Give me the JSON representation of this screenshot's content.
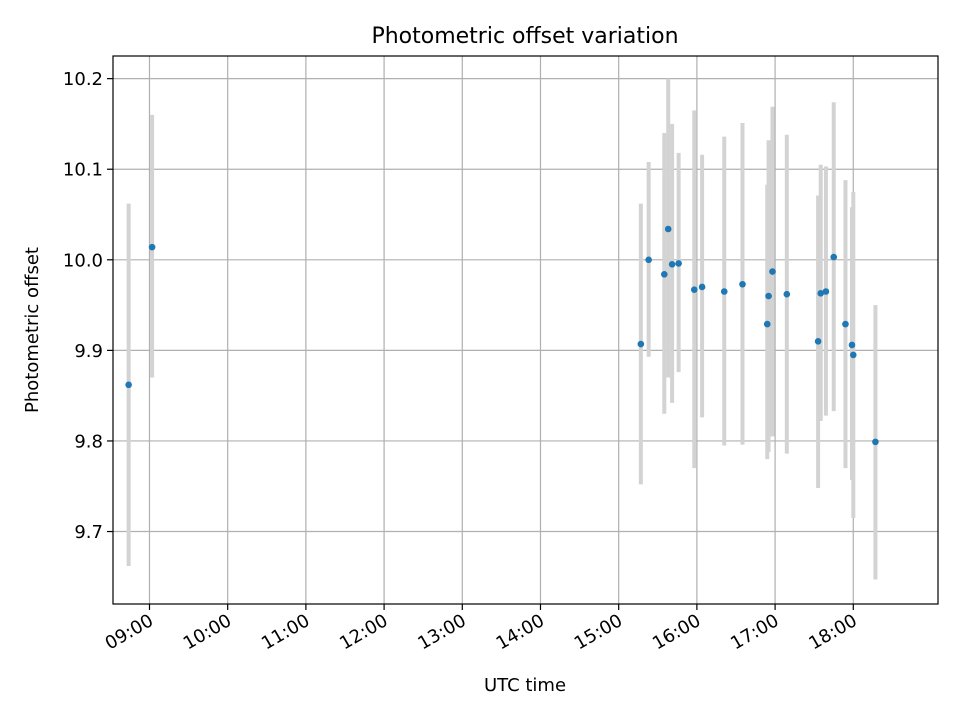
{
  "chart_data": {
    "type": "scatter",
    "title": "Photometric offset variation",
    "xlabel": "UTC time",
    "ylabel": "Photometric offset",
    "grid": true,
    "x_axis": {
      "type": "time",
      "range": [
        "08:32",
        "19:05"
      ],
      "ticks": [
        "09:00",
        "10:00",
        "11:00",
        "12:00",
        "13:00",
        "14:00",
        "15:00",
        "16:00",
        "17:00",
        "18:00"
      ]
    },
    "y_axis": {
      "range": [
        9.62,
        10.225
      ],
      "ticks": [
        9.7,
        9.8,
        9.9,
        10.0,
        10.1,
        10.2
      ],
      "tick_labels": [
        "9.7",
        "9.8",
        "9.9",
        "10.0",
        "10.1",
        "10.2"
      ]
    },
    "marker_color": "#1f77b4",
    "errorbar_color": "#d3d3d3",
    "points": [
      {
        "t": "08:44",
        "y": 9.862,
        "lo": 9.662,
        "hi": 10.062
      },
      {
        "t": "09:02",
        "y": 10.014,
        "lo": 9.87,
        "hi": 10.16
      },
      {
        "t": "15:17",
        "y": 9.907,
        "lo": 9.752,
        "hi": 10.062
      },
      {
        "t": "15:23",
        "y": 10.0,
        "lo": 9.893,
        "hi": 10.108
      },
      {
        "t": "15:35",
        "y": 9.984,
        "lo": 9.83,
        "hi": 10.14
      },
      {
        "t": "15:38",
        "y": 10.034,
        "lo": 9.87,
        "hi": 10.2
      },
      {
        "t": "15:41",
        "y": 9.995,
        "lo": 9.842,
        "hi": 10.15
      },
      {
        "t": "15:46",
        "y": 9.996,
        "lo": 9.876,
        "hi": 10.118
      },
      {
        "t": "15:58",
        "y": 9.967,
        "lo": 9.77,
        "hi": 10.165
      },
      {
        "t": "16:04",
        "y": 9.97,
        "lo": 9.826,
        "hi": 10.116
      },
      {
        "t": "16:21",
        "y": 9.965,
        "lo": 9.795,
        "hi": 10.136
      },
      {
        "t": "16:35",
        "y": 9.973,
        "lo": 9.796,
        "hi": 10.151
      },
      {
        "t": "16:54",
        "y": 9.929,
        "lo": 9.78,
        "hi": 10.083
      },
      {
        "t": "16:55",
        "y": 9.96,
        "lo": 9.788,
        "hi": 10.132
      },
      {
        "t": "16:58",
        "y": 9.987,
        "lo": 9.805,
        "hi": 10.169
      },
      {
        "t": "17:09",
        "y": 9.962,
        "lo": 9.786,
        "hi": 10.138
      },
      {
        "t": "17:33",
        "y": 9.91,
        "lo": 9.748,
        "hi": 10.071
      },
      {
        "t": "17:35",
        "y": 9.963,
        "lo": 9.822,
        "hi": 10.105
      },
      {
        "t": "17:39",
        "y": 9.965,
        "lo": 9.828,
        "hi": 10.103
      },
      {
        "t": "17:45",
        "y": 10.003,
        "lo": 9.833,
        "hi": 10.174
      },
      {
        "t": "17:54",
        "y": 9.929,
        "lo": 9.77,
        "hi": 10.088
      },
      {
        "t": "17:59",
        "y": 9.906,
        "lo": 9.757,
        "hi": 10.058
      },
      {
        "t": "18:00",
        "y": 9.895,
        "lo": 9.715,
        "hi": 10.075
      },
      {
        "t": "18:17",
        "y": 9.799,
        "lo": 9.647,
        "hi": 9.95
      }
    ]
  }
}
